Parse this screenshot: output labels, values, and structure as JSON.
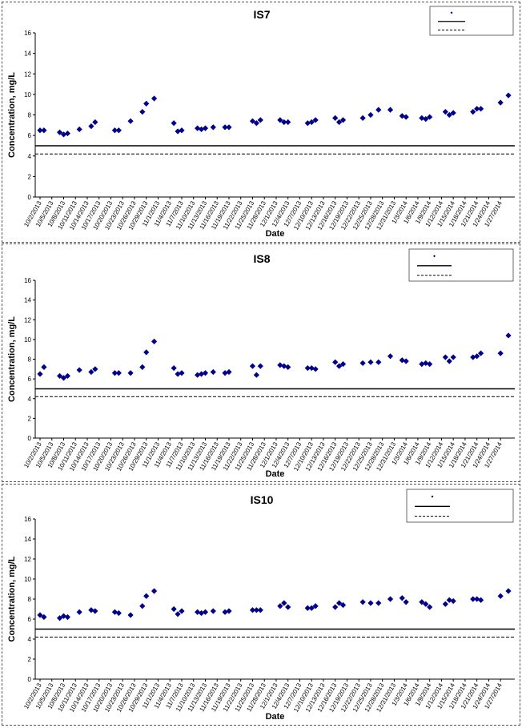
{
  "common": {
    "x_label": "Date",
    "y_label": "Concentration, mg/L",
    "x_ticks": [
      "10/2/2013",
      "10/5/2013",
      "10/8/2013",
      "10/11/2013",
      "10/14/2013",
      "10/17/2013",
      "10/20/2013",
      "10/23/2013",
      "10/26/2013",
      "10/29/2013",
      "11/1/2013",
      "11/4/2013",
      "11/7/2013",
      "11/10/2013",
      "11/13/2013",
      "11/16/2013",
      "11/19/2013",
      "11/22/2013",
      "11/25/2013",
      "11/28/2013",
      "12/1/2013",
      "12/4/2013",
      "12/7/2013",
      "12/10/2013",
      "12/13/2013",
      "12/16/2013",
      "12/19/2013",
      "12/22/2013",
      "12/25/2013",
      "12/28/2013",
      "12/31/2013",
      "1/3/2014",
      "1/6/2014",
      "1/9/2014",
      "1/12/2014",
      "1/15/2014",
      "1/18/2014",
      "1/21/2014",
      "1/24/2014",
      "1/27/2014"
    ],
    "y_ticks": [
      0,
      2,
      4,
      6,
      8,
      10,
      12,
      14,
      16
    ]
  },
  "chart_data": [
    {
      "type": "scatter",
      "title": "IS7",
      "xlabel": "Date",
      "ylabel": "Concentration, mg/L",
      "ylim": [
        0,
        16
      ],
      "xlim": [
        "10/2/2013",
        "1/29/2014"
      ],
      "grid": false,
      "legend": "top-right",
      "marker_color": "#00008B",
      "reference_lines": [
        5.0,
        4.2
      ],
      "points": [
        [
          "10/2/2013",
          6.5
        ],
        [
          "10/3/2013",
          6.5
        ],
        [
          "10/7/2013",
          6.3
        ],
        [
          "10/8/2013",
          6.1
        ],
        [
          "10/9/2013",
          6.2
        ],
        [
          "10/12/2013",
          6.6
        ],
        [
          "10/15/2013",
          6.9
        ],
        [
          "10/16/2013",
          7.3
        ],
        [
          "10/21/2013",
          6.5
        ],
        [
          "10/22/2013",
          6.5
        ],
        [
          "10/25/2013",
          7.4
        ],
        [
          "10/28/2013",
          8.3
        ],
        [
          "10/29/2013",
          9.1
        ],
        [
          "10/31/2013",
          9.6
        ],
        [
          "11/5/2013",
          7.2
        ],
        [
          "11/6/2013",
          6.4
        ],
        [
          "11/7/2013",
          6.5
        ],
        [
          "11/11/2013",
          6.7
        ],
        [
          "11/12/2013",
          6.6
        ],
        [
          "11/13/2013",
          6.7
        ],
        [
          "11/15/2013",
          6.8
        ],
        [
          "11/18/2013",
          6.8
        ],
        [
          "11/19/2013",
          6.8
        ],
        [
          "11/25/2013",
          7.4
        ],
        [
          "11/26/2013",
          7.2
        ],
        [
          "11/27/2013",
          7.5
        ],
        [
          "12/2/2013",
          7.5
        ],
        [
          "12/3/2013",
          7.3
        ],
        [
          "12/4/2013",
          7.3
        ],
        [
          "12/9/2013",
          7.2
        ],
        [
          "12/10/2013",
          7.3
        ],
        [
          "12/11/2013",
          7.5
        ],
        [
          "12/16/2013",
          7.7
        ],
        [
          "12/17/2013",
          7.3
        ],
        [
          "12/18/2013",
          7.5
        ],
        [
          "12/23/2013",
          7.7
        ],
        [
          "12/25/2013",
          8.0
        ],
        [
          "12/27/2013",
          8.5
        ],
        [
          "12/30/2013",
          8.5
        ],
        [
          "1/2/2014",
          7.9
        ],
        [
          "1/3/2014",
          7.8
        ],
        [
          "1/7/2014",
          7.7
        ],
        [
          "1/8/2014",
          7.6
        ],
        [
          "1/9/2014",
          7.8
        ],
        [
          "1/13/2014",
          8.3
        ],
        [
          "1/14/2014",
          8.0
        ],
        [
          "1/15/2014",
          8.2
        ],
        [
          "1/20/2014",
          8.3
        ],
        [
          "1/21/2014",
          8.6
        ],
        [
          "1/22/2014",
          8.6
        ],
        [
          "1/27/2014",
          9.2
        ],
        [
          "1/29/2014",
          9.9
        ]
      ]
    },
    {
      "type": "scatter",
      "title": "IS8",
      "xlabel": "Date",
      "ylabel": "Concentration, mg/L",
      "ylim": [
        0,
        16
      ],
      "xlim": [
        "10/2/2013",
        "1/29/2014"
      ],
      "grid": false,
      "legend": "top-right",
      "marker_color": "#00008B",
      "reference_lines": [
        5.0,
        4.2
      ],
      "points": [
        [
          "10/2/2013",
          6.5
        ],
        [
          "10/3/2013",
          7.2
        ],
        [
          "10/7/2013",
          6.3
        ],
        [
          "10/8/2013",
          6.1
        ],
        [
          "10/9/2013",
          6.3
        ],
        [
          "10/12/2013",
          6.9
        ],
        [
          "10/15/2013",
          6.7
        ],
        [
          "10/16/2013",
          7.0
        ],
        [
          "10/21/2013",
          6.6
        ],
        [
          "10/22/2013",
          6.6
        ],
        [
          "10/25/2013",
          6.6
        ],
        [
          "10/28/2013",
          7.2
        ],
        [
          "10/29/2013",
          8.7
        ],
        [
          "10/31/2013",
          9.8
        ],
        [
          "11/5/2013",
          7.1
        ],
        [
          "11/6/2013",
          6.5
        ],
        [
          "11/7/2013",
          6.6
        ],
        [
          "11/11/2013",
          6.4
        ],
        [
          "11/12/2013",
          6.5
        ],
        [
          "11/13/2013",
          6.6
        ],
        [
          "11/15/2013",
          6.7
        ],
        [
          "11/18/2013",
          6.6
        ],
        [
          "11/19/2013",
          6.7
        ],
        [
          "11/25/2013",
          7.3
        ],
        [
          "11/26/2013",
          6.4
        ],
        [
          "11/27/2013",
          7.3
        ],
        [
          "12/2/2013",
          7.4
        ],
        [
          "12/3/2013",
          7.3
        ],
        [
          "12/4/2013",
          7.2
        ],
        [
          "12/9/2013",
          7.1
        ],
        [
          "12/10/2013",
          7.1
        ],
        [
          "12/11/2013",
          7.0
        ],
        [
          "12/16/2013",
          7.7
        ],
        [
          "12/17/2013",
          7.3
        ],
        [
          "12/18/2013",
          7.5
        ],
        [
          "12/23/2013",
          7.6
        ],
        [
          "12/25/2013",
          7.7
        ],
        [
          "12/27/2013",
          7.7
        ],
        [
          "12/30/2013",
          8.3
        ],
        [
          "1/2/2014",
          7.9
        ],
        [
          "1/3/2014",
          7.8
        ],
        [
          "1/7/2014",
          7.5
        ],
        [
          "1/8/2014",
          7.6
        ],
        [
          "1/9/2014",
          7.5
        ],
        [
          "1/13/2014",
          8.2
        ],
        [
          "1/14/2014",
          7.8
        ],
        [
          "1/15/2014",
          8.2
        ],
        [
          "1/20/2014",
          8.2
        ],
        [
          "1/21/2014",
          8.3
        ],
        [
          "1/22/2014",
          8.6
        ],
        [
          "1/27/2014",
          8.6
        ],
        [
          "1/29/2014",
          10.4
        ]
      ]
    },
    {
      "type": "scatter",
      "title": "IS10",
      "xlabel": "Date",
      "ylabel": "Concentration, mg/L",
      "ylim": [
        0,
        16
      ],
      "xlim": [
        "10/2/2013",
        "1/29/2014"
      ],
      "grid": false,
      "legend": "top-right",
      "marker_color": "#00008B",
      "reference_lines": [
        5.0,
        4.2
      ],
      "points": [
        [
          "10/2/2013",
          6.4
        ],
        [
          "10/3/2013",
          6.2
        ],
        [
          "10/7/2013",
          6.1
        ],
        [
          "10/8/2013",
          6.3
        ],
        [
          "10/9/2013",
          6.2
        ],
        [
          "10/12/2013",
          6.7
        ],
        [
          "10/15/2013",
          6.9
        ],
        [
          "10/16/2013",
          6.8
        ],
        [
          "10/21/2013",
          6.7
        ],
        [
          "10/22/2013",
          6.6
        ],
        [
          "10/25/2013",
          6.4
        ],
        [
          "10/28/2013",
          7.3
        ],
        [
          "10/29/2013",
          8.3
        ],
        [
          "10/31/2013",
          8.8
        ],
        [
          "11/5/2013",
          7.0
        ],
        [
          "11/6/2013",
          6.5
        ],
        [
          "11/7/2013",
          6.8
        ],
        [
          "11/11/2013",
          6.7
        ],
        [
          "11/12/2013",
          6.6
        ],
        [
          "11/13/2013",
          6.7
        ],
        [
          "11/15/2013",
          6.8
        ],
        [
          "11/18/2013",
          6.7
        ],
        [
          "11/19/2013",
          6.8
        ],
        [
          "11/25/2013",
          6.9
        ],
        [
          "11/26/2013",
          6.9
        ],
        [
          "11/27/2013",
          6.9
        ],
        [
          "12/2/2013",
          7.3
        ],
        [
          "12/3/2013",
          7.6
        ],
        [
          "12/4/2013",
          7.2
        ],
        [
          "12/9/2013",
          7.1
        ],
        [
          "12/10/2013",
          7.1
        ],
        [
          "12/11/2013",
          7.3
        ],
        [
          "12/16/2013",
          7.2
        ],
        [
          "12/17/2013",
          7.6
        ],
        [
          "12/18/2013",
          7.4
        ],
        [
          "12/23/2013",
          7.7
        ],
        [
          "12/25/2013",
          7.6
        ],
        [
          "12/27/2013",
          7.6
        ],
        [
          "12/30/2013",
          8.0
        ],
        [
          "1/2/2014",
          8.1
        ],
        [
          "1/3/2014",
          7.7
        ],
        [
          "1/7/2014",
          7.7
        ],
        [
          "1/8/2014",
          7.5
        ],
        [
          "1/9/2014",
          7.2
        ],
        [
          "1/13/2014",
          7.5
        ],
        [
          "1/14/2014",
          7.9
        ],
        [
          "1/15/2014",
          7.8
        ],
        [
          "1/20/2014",
          8.0
        ],
        [
          "1/21/2014",
          8.0
        ],
        [
          "1/22/2014",
          7.9
        ],
        [
          "1/27/2014",
          8.3
        ],
        [
          "1/29/2014",
          8.8
        ]
      ]
    }
  ]
}
